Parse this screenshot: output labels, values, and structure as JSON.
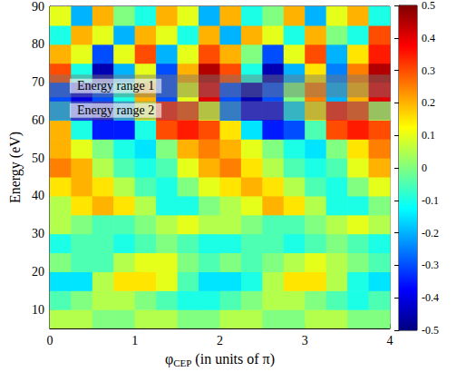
{
  "chart_data": {
    "type": "heatmap",
    "xlabel": "φCEP (in units of π)",
    "xlabel_subscript": "CEP",
    "ylabel": "Energy (eV)",
    "xlim": [
      0,
      4
    ],
    "xticks": [
      0,
      1,
      2,
      3,
      4
    ],
    "ylim": [
      5,
      90
    ],
    "yticks": [
      10,
      20,
      30,
      40,
      50,
      60,
      70,
      80,
      90
    ],
    "x_edges": [
      0,
      0.25,
      0.5,
      0.75,
      1,
      1.25,
      1.5,
      1.75,
      2,
      2.25,
      2.5,
      2.75,
      3,
      3.25,
      3.5,
      3.75,
      4
    ],
    "y_edges": [
      5,
      10,
      15,
      20,
      25,
      30,
      35,
      40,
      45,
      50,
      55,
      60,
      65,
      70,
      75,
      80,
      85,
      90
    ],
    "cells": [
      [
        0.05,
        0.05,
        0,
        0,
        0.05,
        0.05,
        0,
        0,
        0.05,
        0.05,
        0,
        0,
        0.05,
        0.05,
        0,
        0
      ],
      [
        -0.05,
        0,
        0.05,
        0.05,
        0,
        -0.05,
        -0.1,
        -0.1,
        -0.05,
        0,
        0.05,
        0.05,
        0,
        -0.05,
        -0.1,
        -0.05
      ],
      [
        -0.15,
        -0.15,
        0.05,
        0.15,
        0.15,
        0.1,
        -0.05,
        -0.15,
        -0.15,
        -0.1,
        0.05,
        0.15,
        0.15,
        0.05,
        -0.1,
        -0.15
      ],
      [
        0,
        -0.05,
        -0.05,
        0.05,
        0.1,
        0.1,
        0,
        -0.05,
        0,
        -0.05,
        0,
        0.05,
        0.1,
        0.05,
        0,
        -0.05
      ],
      [
        -0.1,
        -0.05,
        -0.05,
        -0.1,
        -0.05,
        0,
        -0.05,
        -0.1,
        -0.1,
        -0.05,
        -0.05,
        -0.1,
        -0.05,
        0,
        -0.05,
        -0.1
      ],
      [
        0.05,
        0,
        -0.05,
        -0.05,
        0,
        0.05,
        0.1,
        0.05,
        0.05,
        0,
        -0.05,
        -0.05,
        0,
        0.05,
        0.1,
        0.05
      ],
      [
        0.05,
        0.15,
        0.2,
        0.15,
        0.05,
        -0.1,
        -0.1,
        0,
        0.05,
        0.1,
        0.2,
        0.15,
        0.05,
        -0.1,
        -0.1,
        0
      ],
      [
        0.15,
        0.2,
        0.15,
        0.05,
        -0.05,
        -0.1,
        0,
        0.1,
        0.15,
        0.2,
        0.15,
        0.05,
        -0.05,
        -0.1,
        0,
        0.1
      ],
      [
        0.25,
        0.2,
        0.05,
        -0.05,
        -0.1,
        -0.05,
        0.1,
        0.2,
        0.25,
        0.15,
        0.05,
        -0.05,
        -0.1,
        -0.05,
        0.1,
        0.2
      ],
      [
        0.2,
        0.1,
        0,
        -0.1,
        -0.15,
        0,
        0.2,
        0.25,
        0.2,
        0.1,
        0,
        -0.1,
        -0.15,
        0,
        0.15,
        0.25
      ],
      [
        0.2,
        -0.1,
        -0.35,
        -0.35,
        -0.1,
        0.3,
        0.35,
        0.3,
        0.15,
        -0.15,
        -0.35,
        -0.3,
        -0.05,
        0.3,
        0.35,
        0.3
      ],
      [
        -0.2,
        -0.35,
        -0.4,
        -0.2,
        0.1,
        0.35,
        0.3,
        0.1,
        -0.25,
        -0.4,
        -0.4,
        -0.15,
        0.15,
        0.35,
        0.3,
        0.05
      ],
      [
        -0.3,
        -0.4,
        -0.3,
        -0.1,
        0.2,
        -0.3,
        0.1,
        0.4,
        -0.3,
        -0.45,
        -0.3,
        0,
        0.25,
        -0.2,
        0.2,
        0.4
      ],
      [
        0.3,
        -0.1,
        -0.45,
        -0.2,
        0.1,
        -0.3,
        0.2,
        0.45,
        0.3,
        -0.1,
        -0.45,
        -0.2,
        0.15,
        -0.25,
        0.25,
        0.45
      ],
      [
        0.2,
        0.1,
        -0.3,
        0.1,
        0.3,
        -0.2,
        0.1,
        0.3,
        0.2,
        0,
        -0.3,
        0.1,
        0.3,
        -0.2,
        0.15,
        0.35
      ],
      [
        -0.1,
        0.2,
        0.1,
        -0.2,
        0.2,
        0.1,
        -0.1,
        0.2,
        -0.2,
        0.2,
        0.1,
        -0.1,
        0.2,
        0,
        -0.1,
        0.3
      ],
      [
        0.1,
        -0.2,
        0.2,
        0,
        -0.1,
        0.2,
        0.1,
        -0.2,
        0.2,
        -0.1,
        0,
        0.2,
        -0.2,
        0.1,
        0.2,
        -0.1
      ]
    ],
    "colorbar": {
      "range": [
        -0.5,
        0.5
      ],
      "ticks": [
        -0.5,
        -0.4,
        -0.3,
        -0.2,
        -0.1,
        0,
        0.1,
        0.2,
        0.3,
        0.4,
        0.5
      ]
    },
    "annotations": [
      {
        "text": "Energy range 1",
        "y_range": [
          66,
          72
        ]
      },
      {
        "text": "Energy range 2",
        "y_range": [
          60,
          65
        ]
      }
    ]
  }
}
